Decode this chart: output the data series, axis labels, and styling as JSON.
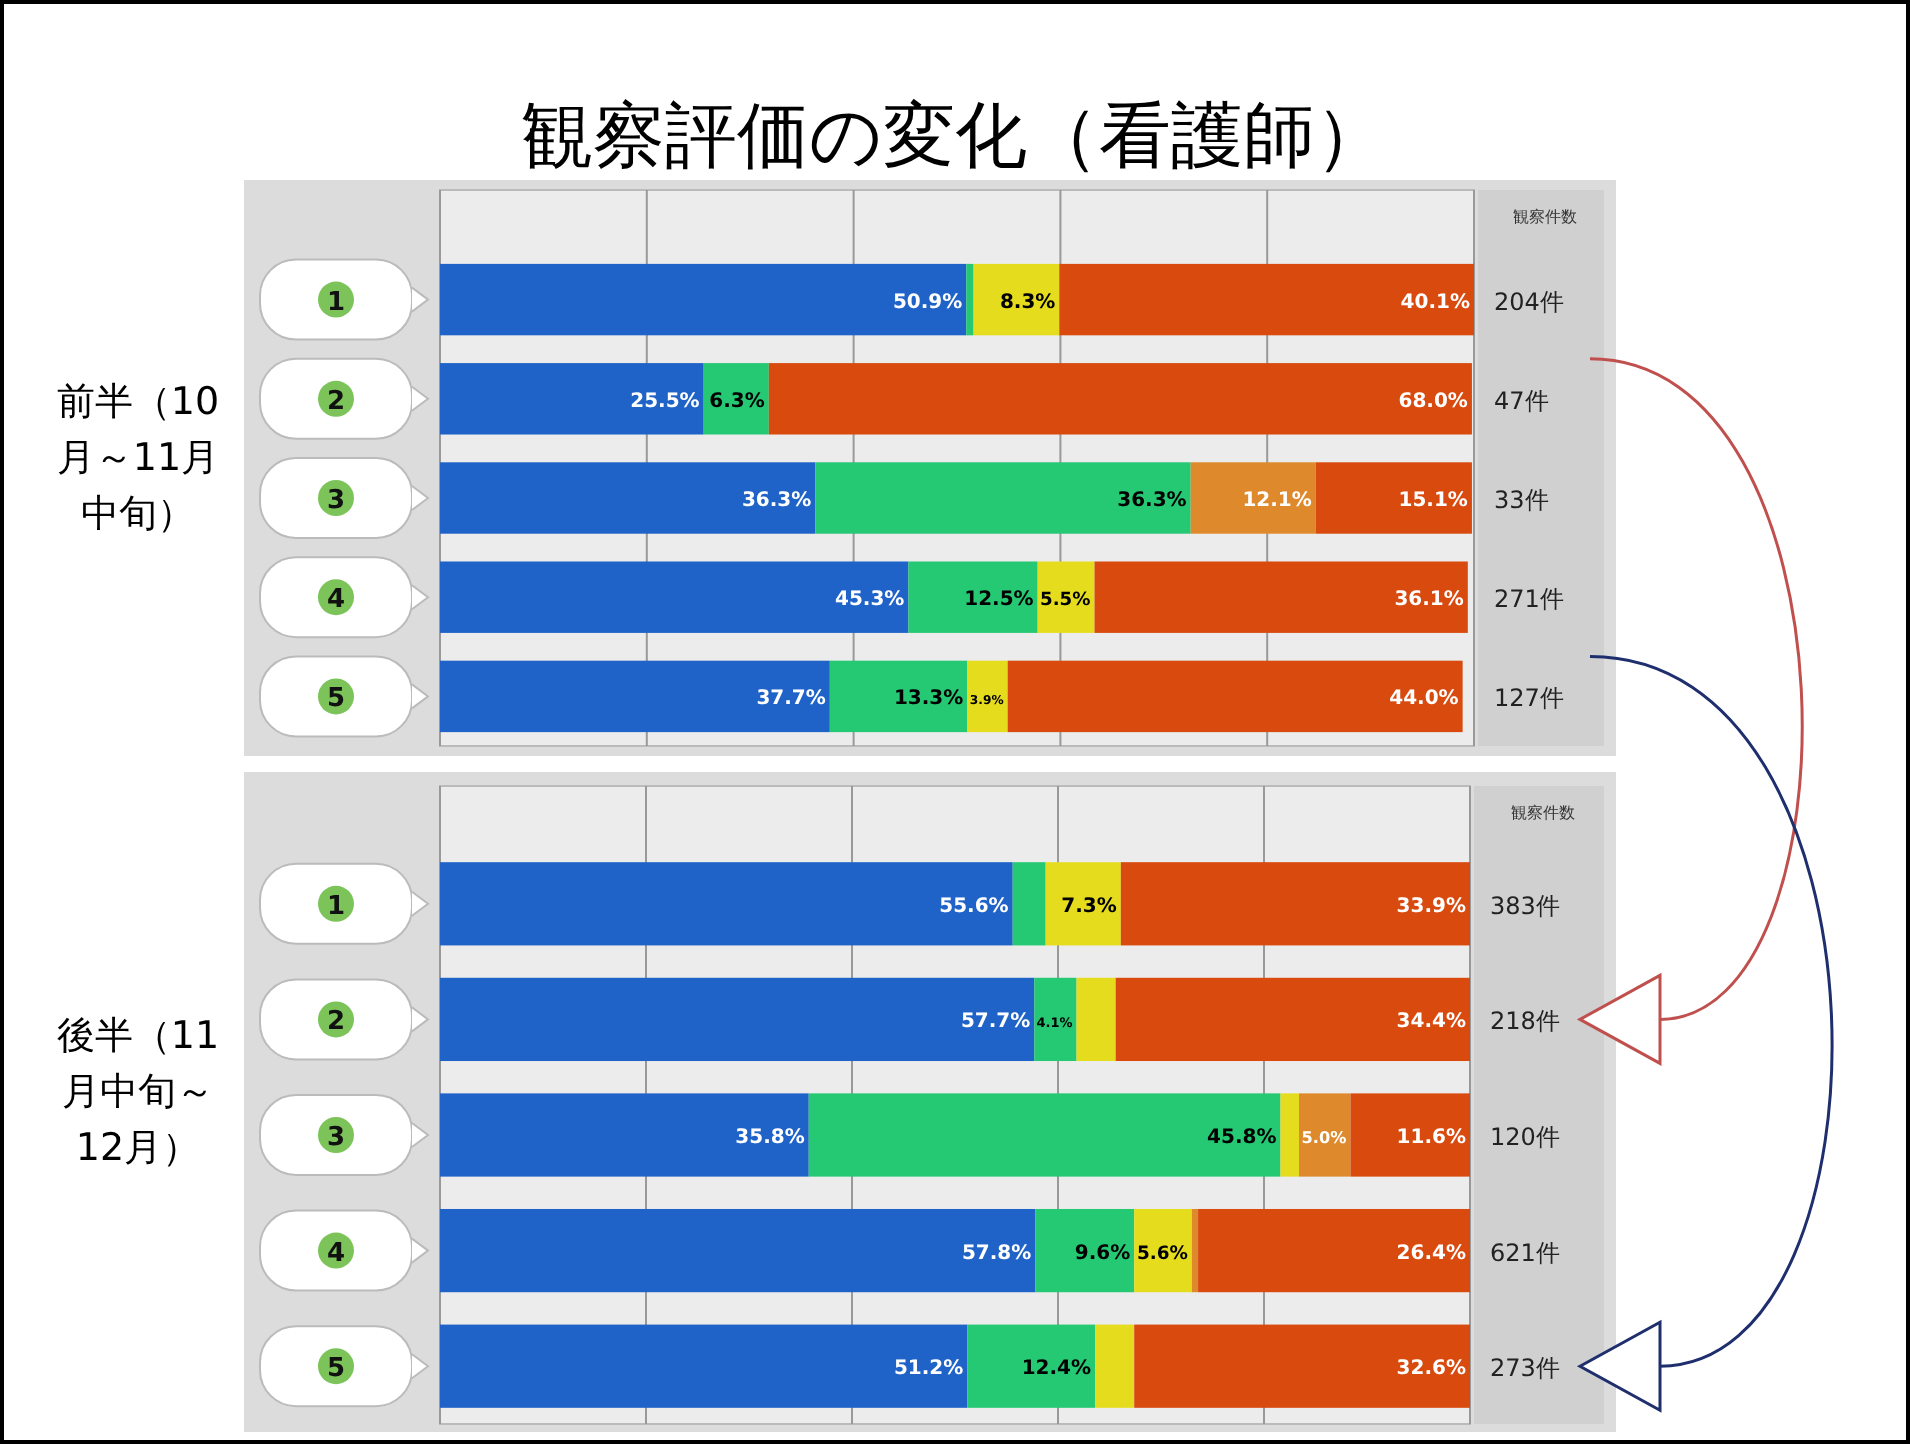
{
  "chart_data": [
    {
      "type": "bar",
      "orientation": "horizontal",
      "stacked": true,
      "title": "観察評価の変化（看護師）",
      "ylabel": "前半（10月～11月中旬）",
      "categories": [
        "1",
        "2",
        "3",
        "4",
        "5"
      ],
      "xlim": [
        0,
        100
      ],
      "xticks": [
        {
          "value": 0,
          "label": null
        },
        {
          "value": 20,
          "label": null
        },
        {
          "value": 40,
          "label": null
        },
        {
          "value": 60,
          "label": null
        },
        {
          "value": 80,
          "label": null
        },
        {
          "value": 100,
          "label": null
        }
      ],
      "grid": "x",
      "annotations": [
        "観察件数",
        "204件",
        "47件",
        "33件",
        "271件",
        "127件"
      ],
      "series": [
        {
          "color": "#1f63c8",
          "values": [
            50.9,
            25.5,
            36.3,
            45.3,
            37.7
          ],
          "value_labels": [
            "50.9%",
            "25.5%",
            "36.3%",
            "45.3%",
            "37.7%"
          ]
        },
        {
          "color": "#25c873",
          "values": [
            0.7,
            6.3,
            36.3,
            12.5,
            13.3
          ],
          "value_labels": [
            null,
            "6.3%",
            "36.3%",
            "12.5%",
            "13.3%"
          ]
        },
        {
          "color": "#e6dc1e",
          "values": [
            8.3,
            0,
            0,
            5.5,
            3.9
          ],
          "value_labels": [
            "8.3%",
            null,
            null,
            "5.5%",
            "3.9%"
          ]
        },
        {
          "color": "#de8a2c",
          "values": [
            0,
            0,
            12.1,
            0,
            0
          ],
          "value_labels": [
            null,
            null,
            "12.1%",
            null,
            null
          ]
        },
        {
          "color": "#d84a0e",
          "values": [
            40.1,
            68.0,
            15.1,
            36.1,
            44.0
          ],
          "value_labels": [
            "40.1%",
            "68.0%",
            "15.1%",
            "36.1%",
            "44.0%"
          ]
        }
      ]
    },
    {
      "type": "bar",
      "orientation": "horizontal",
      "stacked": true,
      "ylabel": "後半（11月中旬～12月）",
      "categories": [
        "1",
        "2",
        "3",
        "4",
        "5"
      ],
      "xlim": [
        0,
        100
      ],
      "xticks": [
        {
          "value": 0,
          "label": null
        },
        {
          "value": 20,
          "label": null
        },
        {
          "value": 40,
          "label": null
        },
        {
          "value": 60,
          "label": null
        },
        {
          "value": 80,
          "label": null
        },
        {
          "value": 100,
          "label": null
        }
      ],
      "grid": "x",
      "annotations": [
        "観察件数",
        "383件",
        "218件",
        "120件",
        "621件",
        "273件"
      ],
      "series": [
        {
          "color": "#1f63c8",
          "values": [
            55.6,
            57.7,
            35.8,
            57.8,
            51.2
          ],
          "value_labels": [
            "55.6%",
            "57.7%",
            "35.8%",
            "57.8%",
            "51.2%"
          ]
        },
        {
          "color": "#25c873",
          "values": [
            3.2,
            4.1,
            45.8,
            9.6,
            12.4
          ],
          "value_labels": [
            null,
            "4.1%",
            "45.8%",
            "9.6%",
            "12.4%"
          ]
        },
        {
          "color": "#e6dc1e",
          "values": [
            7.3,
            3.8,
            1.8,
            5.6,
            3.8
          ],
          "value_labels": [
            "7.3%",
            null,
            null,
            "5.6%",
            null
          ]
        },
        {
          "color": "#de8a2c",
          "values": [
            0,
            0,
            5.0,
            0.6,
            0
          ],
          "value_labels": [
            null,
            null,
            "5.0%",
            null,
            null
          ]
        },
        {
          "color": "#d84a0e",
          "values": [
            33.9,
            34.4,
            11.6,
            26.4,
            32.6
          ],
          "value_labels": [
            "33.9%",
            "34.4%",
            "11.6%",
            "26.4%",
            "32.6%"
          ]
        }
      ]
    }
  ]
}
